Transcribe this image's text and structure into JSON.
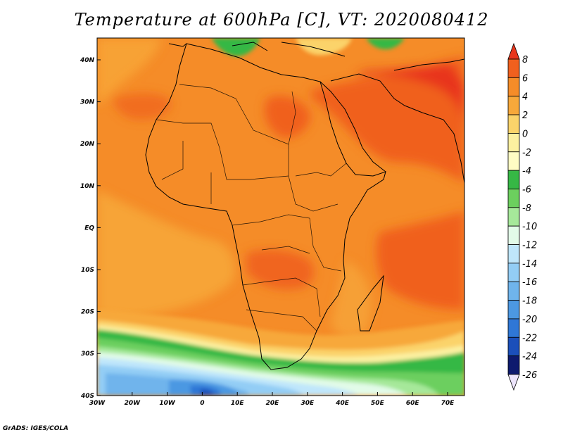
{
  "title": "Temperature at 600hPa [C], VT: 2020080412",
  "credit": "GrADS: IGES/COLA",
  "map": {
    "lat_ticks": [
      "40N",
      "30N",
      "20N",
      "10N",
      "EQ",
      "10S",
      "20S",
      "30S",
      "40S"
    ],
    "lon_ticks": [
      "30W",
      "20W",
      "10W",
      "0",
      "10E",
      "20E",
      "30E",
      "40E",
      "50E",
      "60E",
      "70E"
    ],
    "lat_range": [
      -40,
      45
    ],
    "lon_range": [
      -30,
      75
    ]
  },
  "colorbar": {
    "labels": [
      "8",
      "6",
      "4",
      "2",
      "0",
      "-2",
      "-4",
      "-6",
      "-8",
      "-10",
      "-12",
      "-14",
      "-16",
      "-18",
      "-20",
      "-22",
      "-24",
      "-26"
    ],
    "colors": [
      "#e8361c",
      "#f0601e",
      "#f58c28",
      "#f7a83a",
      "#fbd36a",
      "#fcf0a0",
      "#fffcc4",
      "#36b845",
      "#6ccf5e",
      "#a6e89a",
      "#e2fbe8",
      "#bfe6fb",
      "#93cdf5",
      "#6fb4ec",
      "#4c98e2",
      "#2f77d6",
      "#1b4fba",
      "#0e1a6e",
      "#ece4fb"
    ]
  }
}
